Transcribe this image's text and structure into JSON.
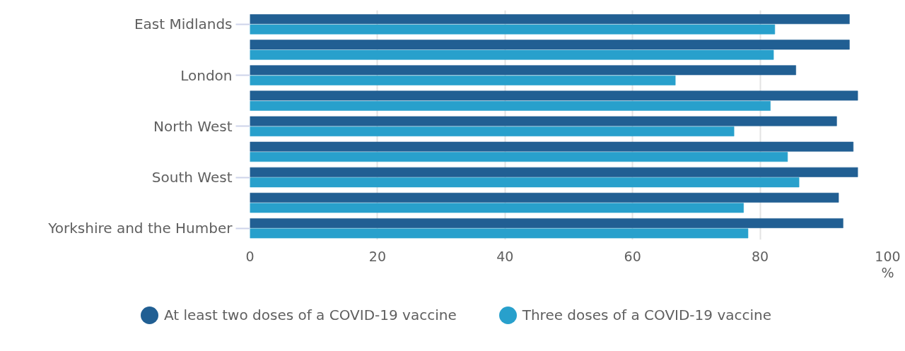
{
  "chart_data": {
    "type": "bar",
    "orientation": "horizontal",
    "categories": [
      "East Midlands",
      null,
      "London",
      null,
      "North West",
      null,
      "South West",
      null,
      "Yorkshire and the Humber"
    ],
    "series": [
      {
        "name": "At least two doses of a COVID-19 vaccine",
        "color": "#215f93",
        "values": [
          94.0,
          94.0,
          85.6,
          95.3,
          92.0,
          94.6,
          95.3,
          92.3,
          93.0
        ]
      },
      {
        "name": "Three doses of a COVID-19 vaccine",
        "color": "#28a0cc",
        "values": [
          82.3,
          82.1,
          66.7,
          81.6,
          75.9,
          84.3,
          86.1,
          77.4,
          78.1
        ]
      }
    ],
    "xlabel": "%",
    "xlim": [
      0,
      100
    ],
    "xticks": [
      0,
      20,
      40,
      60,
      80,
      100
    ],
    "grid": "x",
    "legend": "bottom"
  }
}
